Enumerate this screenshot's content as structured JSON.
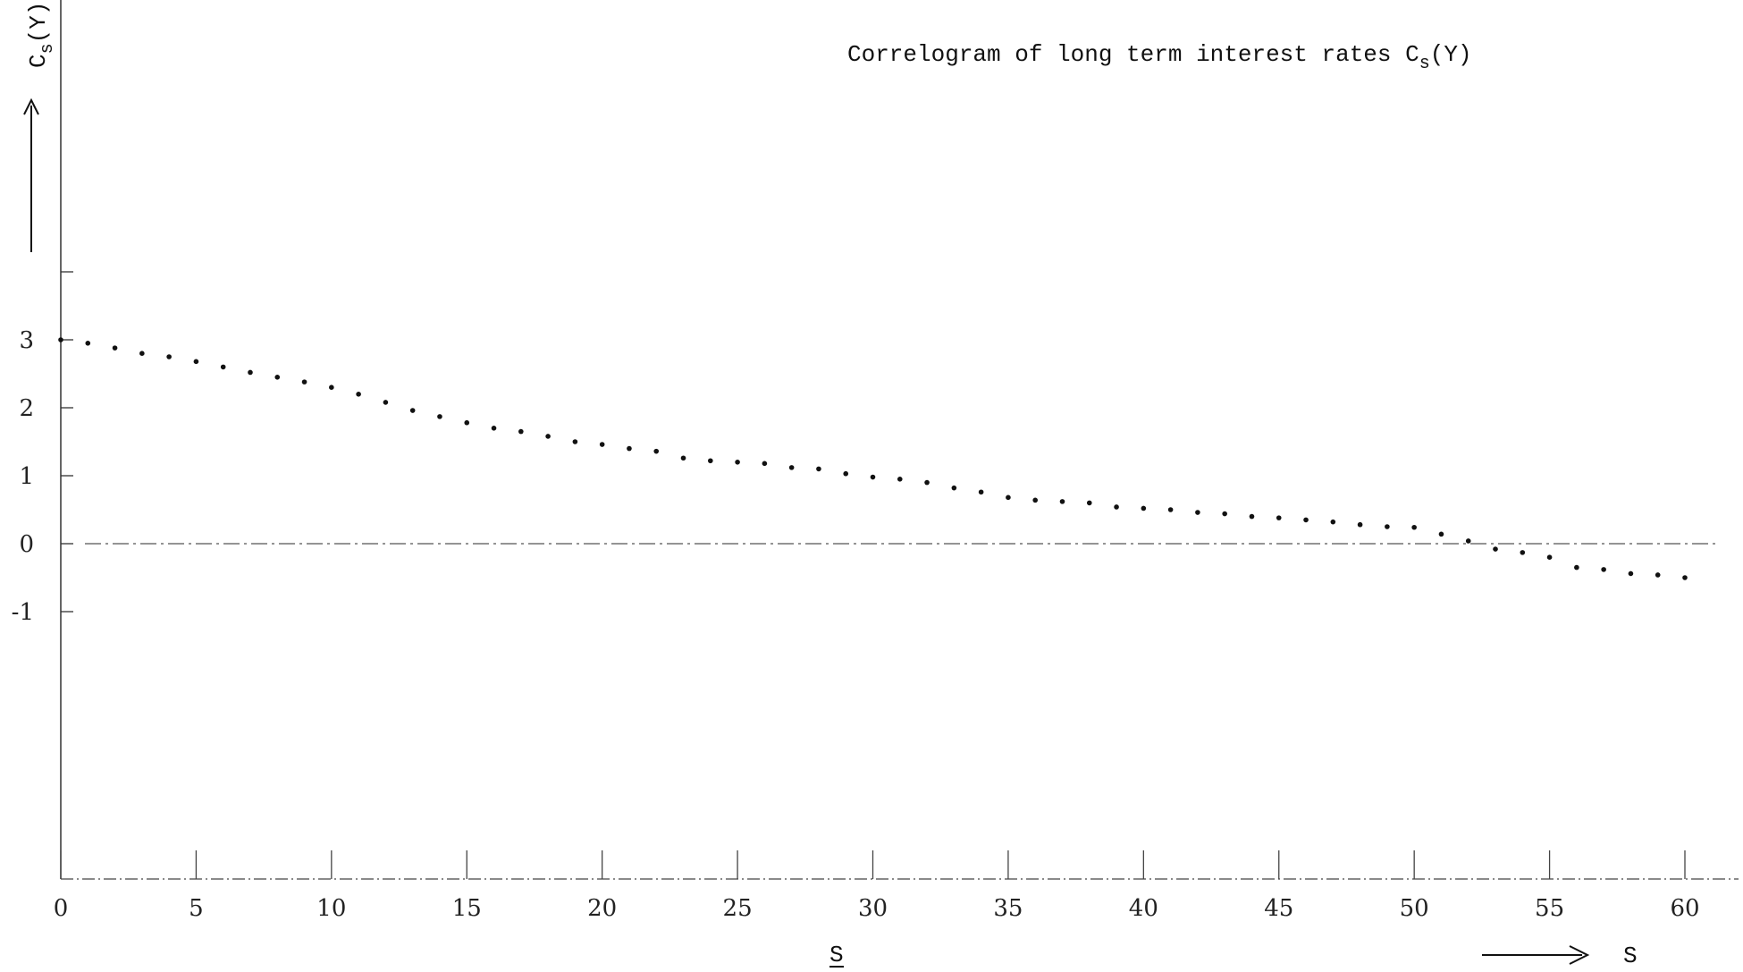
{
  "chart_data": {
    "type": "scatter",
    "title": "Correlogram of long term interest rates  Cs(Y)",
    "title_parts": {
      "main": "Correlogram of long term interest rates  C",
      "sub": "s",
      "tail": "(Y)"
    },
    "ylabel_parts": {
      "main": "C",
      "sub": "s",
      "tail": "(Y)"
    },
    "xlabel": "S",
    "x_arrow_label": "S",
    "x_ticks": [
      0,
      5,
      10,
      15,
      20,
      25,
      30,
      35,
      40,
      45,
      50,
      55,
      60
    ],
    "x_tick_labels": [
      "0",
      "5",
      "10",
      "15",
      "20",
      "25",
      "30",
      "35",
      "40",
      "45",
      "50",
      "55",
      "60"
    ],
    "y_ticks": [
      3,
      2,
      1,
      0,
      -1
    ],
    "y_tick_labels": [
      "3",
      "2",
      "1",
      "0",
      "-1"
    ],
    "xlim": [
      0,
      62
    ],
    "ylim": [
      -5.0,
      4.0
    ],
    "grid": false,
    "series": [
      {
        "x": [
          0,
          1,
          2,
          3,
          4,
          5,
          6,
          7,
          8,
          9,
          10,
          11,
          12,
          13,
          14,
          15,
          16,
          17,
          18,
          19,
          20,
          21,
          22,
          23,
          24,
          25,
          26,
          27,
          28,
          29,
          30,
          31,
          32,
          33,
          34,
          35,
          36,
          37,
          38,
          39,
          40,
          41,
          42,
          43,
          44,
          45,
          46,
          47,
          48,
          49,
          50,
          51,
          52,
          53,
          54,
          55,
          56,
          57,
          58,
          59,
          60
        ],
        "values": [
          3.0,
          2.95,
          2.88,
          2.8,
          2.75,
          2.68,
          2.6,
          2.52,
          2.45,
          2.38,
          2.3,
          2.2,
          2.08,
          1.96,
          1.87,
          1.78,
          1.7,
          1.65,
          1.58,
          1.5,
          1.46,
          1.4,
          1.36,
          1.26,
          1.22,
          1.2,
          1.18,
          1.12,
          1.1,
          1.03,
          0.98,
          0.95,
          0.9,
          0.82,
          0.76,
          0.68,
          0.64,
          0.62,
          0.6,
          0.54,
          0.52,
          0.5,
          0.46,
          0.44,
          0.4,
          0.38,
          0.35,
          0.32,
          0.28,
          0.25,
          0.24,
          0.14,
          0.04,
          -0.08,
          -0.13,
          -0.2,
          -0.35,
          -0.38,
          -0.44,
          -0.46,
          -0.5
        ]
      }
    ]
  }
}
